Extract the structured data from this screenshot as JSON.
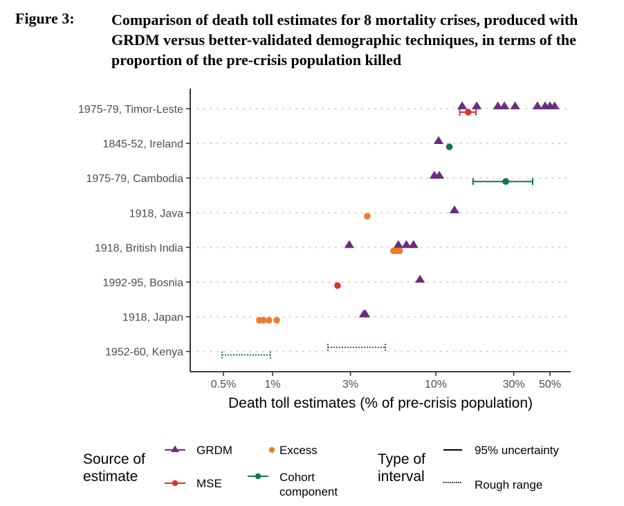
{
  "figure": {
    "label": "Figure 3:",
    "title": "Comparison of death toll estimates for 8 mortality crises, produced with GRDM versus better-validated demographic techniques, in terms of the proportion of the pre-crisis population killed"
  },
  "colors": {
    "GRDM": "#6b2c7e",
    "MSE": "#d7352f",
    "Excess": "#ef7d2a",
    "Cohort": "#137256"
  },
  "chart_data": {
    "type": "scatter",
    "title": "Comparison of death toll estimates for 8 mortality crises, produced with GRDM versus better-validated demographic techniques, in terms of the proportion of the pre-crisis population killed",
    "xlabel": "Death toll estimates (% of pre-crisis population)",
    "ylabel": "",
    "xscale": "log",
    "xlim": [
      0.4,
      65
    ],
    "xticks": [
      0.5,
      1,
      3,
      10,
      30,
      50
    ],
    "xtick_labels": [
      "0.5%",
      "1%",
      "3%",
      "10%",
      "30%",
      "50%"
    ],
    "grid": "horizontal dotted",
    "categories": [
      "1975-79, Timor-Leste",
      "1845-52, Ireland",
      "1975-79, Cambodia",
      "1918, Java",
      "1918, British India",
      "1992-95, Bosnia",
      "1918, Japan",
      "1952-60, Kenya"
    ],
    "points": [
      {
        "crisis": "1975-79, Timor-Leste",
        "source": "GRDM",
        "values": [
          14.5,
          17.8,
          24.0,
          26.3,
          30.6,
          41.9,
          46.7,
          50.0,
          53.4
        ]
      },
      {
        "crisis": "1975-79, Timor-Leste",
        "source": "MSE",
        "values": [
          15.8
        ]
      },
      {
        "crisis": "1845-52, Ireland",
        "source": "GRDM",
        "values": [
          10.4
        ]
      },
      {
        "crisis": "1845-52, Ireland",
        "source": "Cohort",
        "values": [
          12.1
        ]
      },
      {
        "crisis": "1975-79, Cambodia",
        "source": "GRDM",
        "values": [
          9.8,
          10.5
        ]
      },
      {
        "crisis": "1975-79, Cambodia",
        "source": "Cohort",
        "values": [
          26.8
        ]
      },
      {
        "crisis": "1918, Java",
        "source": "GRDM",
        "values": [
          13.0
        ]
      },
      {
        "crisis": "1918, Java",
        "source": "Excess",
        "values": [
          3.8
        ]
      },
      {
        "crisis": "1918, British India",
        "source": "GRDM",
        "values": [
          2.95,
          5.9,
          6.6,
          7.3
        ]
      },
      {
        "crisis": "1918, British India",
        "source": "Excess",
        "values": [
          5.5,
          5.7,
          6.0
        ]
      },
      {
        "crisis": "1992-95, Bosnia",
        "source": "GRDM",
        "values": [
          8.0
        ]
      },
      {
        "crisis": "1992-95, Bosnia",
        "source": "MSE",
        "values": [
          2.5
        ]
      },
      {
        "crisis": "1918, Japan",
        "source": "GRDM",
        "values": [
          3.62,
          3.7
        ]
      },
      {
        "crisis": "1918, Japan",
        "source": "Excess",
        "values": [
          0.83,
          0.88,
          0.95,
          1.06
        ]
      }
    ],
    "intervals": [
      {
        "crisis": "1975-79, Timor-Leste",
        "source": "MSE",
        "type": "95% uncertainty",
        "low": 14.0,
        "high": 17.6
      },
      {
        "crisis": "1975-79, Cambodia",
        "source": "Cohort",
        "type": "95% uncertainty",
        "low": 16.9,
        "high": 39.2
      },
      {
        "crisis": "1952-60, Kenya",
        "source": "Cohort",
        "type": "Rough range",
        "low": 0.49,
        "high": 0.97
      },
      {
        "crisis": "1952-60, Kenya",
        "source": "GRDM",
        "type": "Rough range",
        "low": 2.18,
        "high": 4.9
      }
    ],
    "legend": {
      "position": "bottom",
      "source_title": "Source of estimate",
      "source_items": [
        {
          "key": "GRDM",
          "label": "GRDM",
          "shape": "triangle"
        },
        {
          "key": "Excess",
          "label": "Excess",
          "shape": "circle"
        },
        {
          "key": "MSE",
          "label": "MSE",
          "shape": "circle"
        },
        {
          "key": "Cohort",
          "label": "Cohort component",
          "shape": "circle"
        }
      ],
      "interval_title": "Type of interval",
      "interval_items": [
        {
          "label": "95% uncertainty",
          "style": "solid"
        },
        {
          "label": "Rough range",
          "style": "dotted"
        }
      ]
    }
  }
}
